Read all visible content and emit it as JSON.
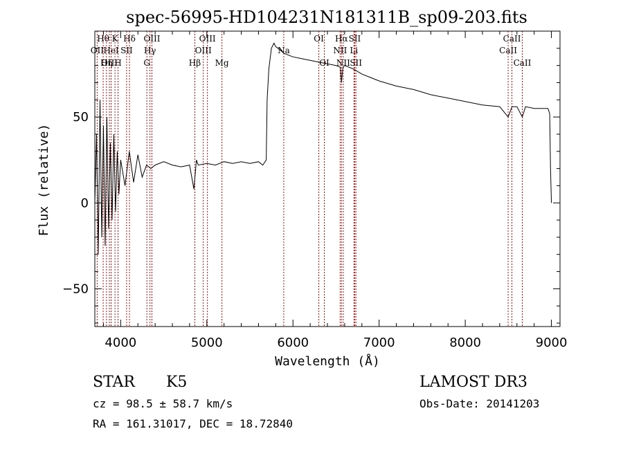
{
  "chart_data": {
    "type": "line",
    "title": "spec-56995-HD104231N181311B_sp09-203.fits",
    "xlabel": "Wavelength (Å)",
    "ylabel": "Flux (relative)",
    "xlim": [
      3700,
      9100
    ],
    "ylim": [
      -72,
      100
    ],
    "xticks": [
      4000,
      5000,
      6000,
      7000,
      8000,
      9000
    ],
    "yticks": [
      -50,
      0,
      50
    ],
    "series": [
      {
        "name": "flux",
        "x": [
          3700,
          3720,
          3740,
          3760,
          3780,
          3800,
          3820,
          3840,
          3860,
          3880,
          3900,
          3920,
          3940,
          3960,
          3980,
          4000,
          4050,
          4100,
          4150,
          4200,
          4250,
          4300,
          4350,
          4400,
          4500,
          4600,
          4700,
          4800,
          4850,
          4880,
          4900,
          5000,
          5100,
          5200,
          5300,
          5400,
          5500,
          5600,
          5650,
          5690,
          5700,
          5720,
          5750,
          5780,
          5800,
          5850,
          5900,
          5950,
          6000,
          6100,
          6200,
          6300,
          6400,
          6500,
          6550,
          6563,
          6580,
          6600,
          6700,
          6800,
          6900,
          7000,
          7200,
          7400,
          7600,
          7800,
          8000,
          8200,
          8400,
          8498,
          8542,
          8600,
          8662,
          8700,
          8800,
          8900,
          8960,
          8980,
          8990,
          9000
        ],
        "values": [
          0,
          40,
          -30,
          60,
          -20,
          45,
          -25,
          50,
          -15,
          35,
          -10,
          40,
          -5,
          30,
          5,
          25,
          10,
          30,
          12,
          28,
          15,
          22,
          20,
          22,
          24,
          22,
          21,
          22,
          8,
          25,
          22,
          23,
          22,
          24,
          23,
          24,
          23,
          24,
          22,
          25,
          60,
          78,
          90,
          93,
          91,
          89,
          87,
          86,
          85,
          84,
          83,
          82,
          81,
          80,
          79,
          70,
          79,
          80,
          78,
          75,
          73,
          71,
          68,
          66,
          63,
          61,
          59,
          57,
          56,
          50,
          56,
          56,
          50,
          56,
          55,
          55,
          55,
          52,
          20,
          0
        ]
      }
    ],
    "lines": [
      {
        "label": "Hθ",
        "x": 3797,
        "row": 1
      },
      {
        "label": "OII",
        "x": 3727,
        "row": 2
      },
      {
        "label": "OIII",
        "x": 3869,
        "row": 3
      },
      {
        "label": "K",
        "x": 3934,
        "row": 1
      },
      {
        "label": "HeI",
        "x": 3889,
        "row": 2
      },
      {
        "label": "Hη",
        "x": 3835,
        "row": 3
      },
      {
        "label": "H",
        "x": 3969,
        "row": 3
      },
      {
        "label": "SII",
        "x": 4069,
        "row": 2
      },
      {
        "label": "Hδ",
        "x": 4102,
        "row": 1
      },
      {
        "label": "OIII",
        "x": 4363,
        "row": 1
      },
      {
        "label": "Hγ",
        "x": 4340,
        "row": 2
      },
      {
        "label": "G",
        "x": 4304,
        "row": 3
      },
      {
        "label": "Hβ",
        "x": 4861,
        "row": 3
      },
      {
        "label": "OIII",
        "x": 5007,
        "row": 1
      },
      {
        "label": "OIII",
        "x": 4959,
        "row": 2
      },
      {
        "label": "Mg",
        "x": 5175,
        "row": 3
      },
      {
        "label": "Na",
        "x": 5893,
        "row": 2
      },
      {
        "label": "OI",
        "x": 6300,
        "row": 1
      },
      {
        "label": "OI",
        "x": 6364,
        "row": 3
      },
      {
        "label": "Hα",
        "x": 6563,
        "row": 1
      },
      {
        "label": "NII",
        "x": 6548,
        "row": 2
      },
      {
        "label": "NII",
        "x": 6584,
        "row": 3
      },
      {
        "label": "SII",
        "x": 6717,
        "row": 1
      },
      {
        "label": "Li",
        "x": 6708,
        "row": 2
      },
      {
        "label": "SII",
        "x": 6731,
        "row": 3
      },
      {
        "label": "CaII",
        "x": 8542,
        "row": 1
      },
      {
        "label": "CaII",
        "x": 8498,
        "row": 2
      },
      {
        "label": "CaII",
        "x": 8662,
        "row": 3
      }
    ]
  },
  "info": {
    "object_type": "STAR",
    "subclass": "K5",
    "survey": "LAMOST DR3",
    "cz": "cz = 98.5 ± 58.7 km/s",
    "obs_date": "Obs-Date: 20141203",
    "coords": "RA = 161.31017, DEC =  18.72840"
  },
  "colors": {
    "line": "#000000",
    "marker_line": "#cc0000",
    "background": "#ffffff"
  }
}
